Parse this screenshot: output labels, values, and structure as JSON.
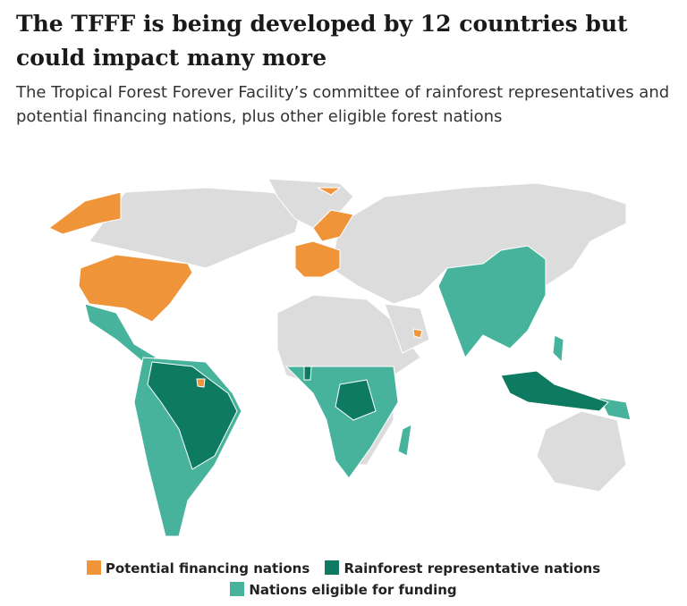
{
  "header": {
    "title": "The TFFF is being developed by 12 countries but could impact many more",
    "subtitle": "The Tropical Forest Forever Facility’s committee of rainforest representatives and potential financing nations, plus other eligible forest nations"
  },
  "legend": {
    "items": [
      {
        "label": "Potential financing nations",
        "color": "#f0943a"
      },
      {
        "label": "Rainforest representative nations",
        "color": "#0e7a62"
      },
      {
        "label": "Nations eligible for funding",
        "color": "#47b39c"
      }
    ]
  }
}
